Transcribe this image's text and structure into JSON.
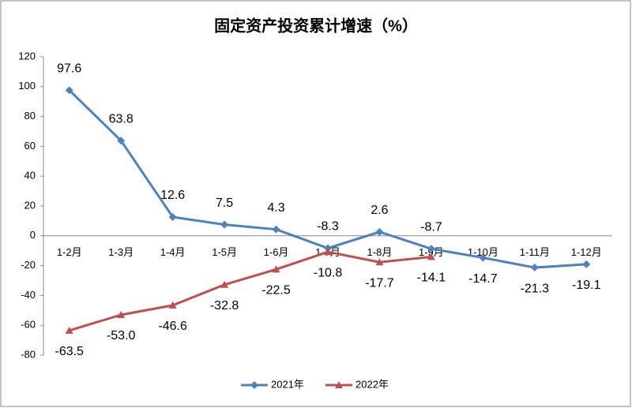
{
  "chart_data": {
    "type": "line",
    "title": "固定资产投资累计增速（%）",
    "categories": [
      "1-2月",
      "1-3月",
      "1-4月",
      "1-5月",
      "1-6月",
      "1-7月",
      "1-8月",
      "1-9月",
      "1-10月",
      "1-11月",
      "1-12月"
    ],
    "series": [
      {
        "name": "2021年",
        "color": "#4f81bd",
        "values": [
          97.6,
          63.8,
          12.6,
          7.5,
          4.3,
          -8.3,
          2.6,
          -8.7,
          -14.7,
          -21.3,
          -19.1
        ]
      },
      {
        "name": "2022年",
        "color": "#c0504d",
        "values": [
          -63.5,
          -53.0,
          -46.6,
          -32.8,
          -22.5,
          -10.8,
          -17.7,
          -14.1,
          null,
          null,
          null
        ],
        "value_labels": [
          "-63.5",
          "-53.0",
          "-46.6",
          "-32.8",
          "-22.5",
          "-10.8",
          "-17.7",
          "-14.1",
          null,
          null,
          null
        ]
      }
    ],
    "ylim": [
      -80,
      120
    ],
    "yticks": [
      -80,
      -60,
      -40,
      -20,
      0,
      20,
      40,
      60,
      80,
      100,
      120
    ],
    "legend": "bottom"
  }
}
